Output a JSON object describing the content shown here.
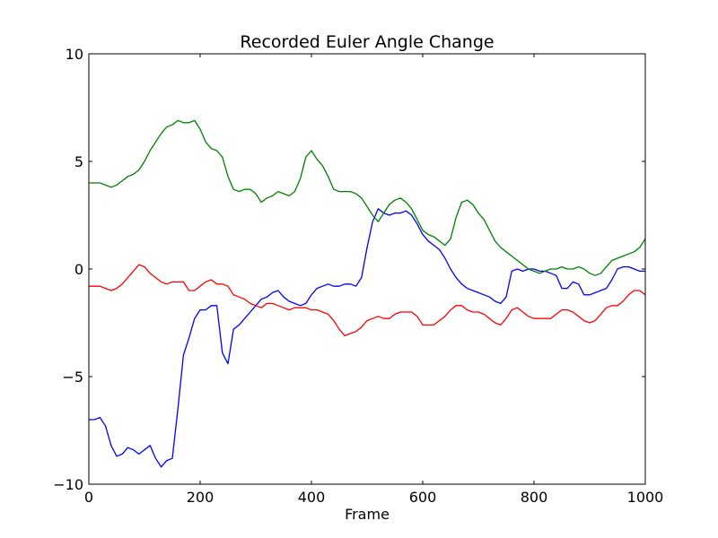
{
  "chart_data": {
    "type": "line",
    "title": "Recorded Euler Angle Change",
    "xlabel": "Frame",
    "ylabel": "",
    "xlim": [
      0,
      1000
    ],
    "ylim": [
      -10,
      10
    ],
    "xticks": [
      0,
      200,
      400,
      600,
      800,
      1000
    ],
    "yticks": [
      -10,
      -5,
      0,
      5,
      10
    ],
    "xtick_labels": [
      "0",
      "200",
      "400",
      "600",
      "800",
      "1000"
    ],
    "ytick_labels": [
      "−10",
      "−5",
      "0",
      "5",
      "10"
    ],
    "grid": false,
    "series": [
      {
        "color": "#0000ff",
        "x": [
          0,
          10,
          20,
          30,
          40,
          50,
          60,
          70,
          80,
          90,
          100,
          110,
          120,
          130,
          140,
          150,
          160,
          170,
          180,
          190,
          200,
          210,
          220,
          230,
          240,
          250,
          260,
          270,
          280,
          290,
          300,
          310,
          320,
          330,
          340,
          350,
          360,
          370,
          380,
          390,
          400,
          410,
          420,
          430,
          440,
          450,
          460,
          470,
          480,
          490,
          500,
          510,
          520,
          530,
          540,
          550,
          560,
          570,
          580,
          590,
          600,
          610,
          620,
          630,
          640,
          650,
          660,
          670,
          680,
          690,
          700,
          710,
          720,
          730,
          740,
          750,
          760,
          770,
          780,
          790,
          800,
          810,
          820,
          830,
          840,
          850,
          860,
          870,
          880,
          890,
          900,
          910,
          920,
          930,
          940,
          950,
          960,
          970,
          980,
          990,
          1000
        ],
        "y": [
          -7.0,
          -7.0,
          -6.9,
          -7.3,
          -8.2,
          -8.7,
          -8.6,
          -8.3,
          -8.4,
          -8.6,
          -8.4,
          -8.2,
          -8.8,
          -9.2,
          -8.9,
          -8.8,
          -6.5,
          -4.0,
          -3.2,
          -2.3,
          -1.9,
          -1.9,
          -1.7,
          -1.7,
          -3.9,
          -4.4,
          -2.8,
          -2.6,
          -2.3,
          -2.0,
          -1.7,
          -1.4,
          -1.3,
          -1.1,
          -1.0,
          -1.3,
          -1.5,
          -1.6,
          -1.7,
          -1.6,
          -1.2,
          -0.9,
          -0.8,
          -0.7,
          -0.8,
          -0.8,
          -0.7,
          -0.7,
          -0.8,
          -0.4,
          1.0,
          2.2,
          2.8,
          2.6,
          2.5,
          2.6,
          2.6,
          2.7,
          2.5,
          2.1,
          1.6,
          1.3,
          1.1,
          0.9,
          0.5,
          0.0,
          -0.4,
          -0.7,
          -0.9,
          -1.0,
          -1.1,
          -1.2,
          -1.3,
          -1.5,
          -1.6,
          -1.3,
          -0.1,
          0.0,
          -0.1,
          0.0,
          0.0,
          -0.1,
          -0.1,
          -0.2,
          -0.3,
          -0.9,
          -0.9,
          -0.6,
          -0.7,
          -1.2,
          -1.2,
          -1.1,
          -1.0,
          -0.9,
          -0.5,
          0.0,
          0.1,
          0.1,
          0.0,
          -0.1,
          -0.1
        ]
      },
      {
        "color": "#008000",
        "x": [
          0,
          10,
          20,
          30,
          40,
          50,
          60,
          70,
          80,
          90,
          100,
          110,
          120,
          130,
          140,
          150,
          160,
          170,
          180,
          190,
          200,
          210,
          220,
          230,
          240,
          250,
          260,
          270,
          280,
          290,
          300,
          310,
          320,
          330,
          340,
          350,
          360,
          370,
          380,
          390,
          400,
          410,
          420,
          430,
          440,
          450,
          460,
          470,
          480,
          490,
          500,
          510,
          520,
          530,
          540,
          550,
          560,
          570,
          580,
          590,
          600,
          610,
          620,
          630,
          640,
          650,
          660,
          670,
          680,
          690,
          700,
          710,
          720,
          730,
          740,
          750,
          760,
          770,
          780,
          790,
          800,
          810,
          820,
          830,
          840,
          850,
          860,
          870,
          880,
          890,
          900,
          910,
          920,
          930,
          940,
          950,
          960,
          970,
          980,
          990,
          1000
        ],
        "y": [
          4.0,
          4.0,
          4.0,
          3.9,
          3.8,
          3.9,
          4.1,
          4.3,
          4.4,
          4.6,
          5.0,
          5.5,
          5.9,
          6.3,
          6.6,
          6.7,
          6.9,
          6.8,
          6.8,
          6.9,
          6.5,
          5.9,
          5.6,
          5.5,
          5.2,
          4.3,
          3.7,
          3.6,
          3.7,
          3.7,
          3.5,
          3.1,
          3.3,
          3.4,
          3.6,
          3.5,
          3.4,
          3.6,
          4.2,
          5.2,
          5.5,
          5.1,
          4.8,
          4.3,
          3.7,
          3.6,
          3.6,
          3.6,
          3.5,
          3.3,
          2.9,
          2.5,
          2.2,
          2.6,
          3.0,
          3.2,
          3.3,
          3.1,
          2.8,
          2.3,
          1.8,
          1.6,
          1.5,
          1.3,
          1.1,
          1.4,
          2.4,
          3.1,
          3.2,
          3.0,
          2.6,
          2.3,
          1.8,
          1.3,
          1.0,
          0.8,
          0.6,
          0.4,
          0.2,
          0.0,
          -0.1,
          -0.2,
          -0.1,
          0.0,
          0.0,
          0.1,
          0.0,
          0.0,
          0.1,
          0.0,
          -0.2,
          -0.3,
          -0.2,
          0.1,
          0.4,
          0.5,
          0.6,
          0.7,
          0.8,
          1.0,
          1.4
        ]
      },
      {
        "color": "#ff0000",
        "x": [
          0,
          10,
          20,
          30,
          40,
          50,
          60,
          70,
          80,
          90,
          100,
          110,
          120,
          130,
          140,
          150,
          160,
          170,
          180,
          190,
          200,
          210,
          220,
          230,
          240,
          250,
          260,
          270,
          280,
          290,
          300,
          310,
          320,
          330,
          340,
          350,
          360,
          370,
          380,
          390,
          400,
          410,
          420,
          430,
          440,
          450,
          460,
          470,
          480,
          490,
          500,
          510,
          520,
          530,
          540,
          550,
          560,
          570,
          580,
          590,
          600,
          610,
          620,
          630,
          640,
          650,
          660,
          670,
          680,
          690,
          700,
          710,
          720,
          730,
          740,
          750,
          760,
          770,
          780,
          790,
          800,
          810,
          820,
          830,
          840,
          850,
          860,
          870,
          880,
          890,
          900,
          910,
          920,
          930,
          940,
          950,
          960,
          970,
          980,
          990,
          1000
        ],
        "y": [
          -0.8,
          -0.8,
          -0.8,
          -0.9,
          -1.0,
          -0.9,
          -0.7,
          -0.4,
          -0.1,
          0.2,
          0.1,
          -0.2,
          -0.4,
          -0.6,
          -0.7,
          -0.6,
          -0.6,
          -0.6,
          -1.0,
          -1.0,
          -0.8,
          -0.6,
          -0.5,
          -0.7,
          -0.7,
          -0.8,
          -1.2,
          -1.3,
          -1.4,
          -1.6,
          -1.7,
          -1.8,
          -1.6,
          -1.6,
          -1.7,
          -1.8,
          -1.9,
          -1.8,
          -1.8,
          -1.8,
          -1.9,
          -1.9,
          -2.0,
          -2.1,
          -2.4,
          -2.8,
          -3.1,
          -3.0,
          -2.9,
          -2.7,
          -2.4,
          -2.3,
          -2.2,
          -2.3,
          -2.3,
          -2.1,
          -2.0,
          -2.0,
          -2.0,
          -2.2,
          -2.6,
          -2.6,
          -2.6,
          -2.4,
          -2.2,
          -1.9,
          -1.7,
          -1.7,
          -1.9,
          -2.0,
          -2.0,
          -2.1,
          -2.3,
          -2.5,
          -2.6,
          -2.3,
          -1.9,
          -1.8,
          -2.0,
          -2.2,
          -2.3,
          -2.3,
          -2.3,
          -2.3,
          -2.1,
          -1.9,
          -1.9,
          -2.0,
          -2.2,
          -2.4,
          -2.5,
          -2.4,
          -2.1,
          -1.8,
          -1.7,
          -1.7,
          -1.5,
          -1.2,
          -1.0,
          -1.0,
          -1.2
        ]
      }
    ]
  }
}
